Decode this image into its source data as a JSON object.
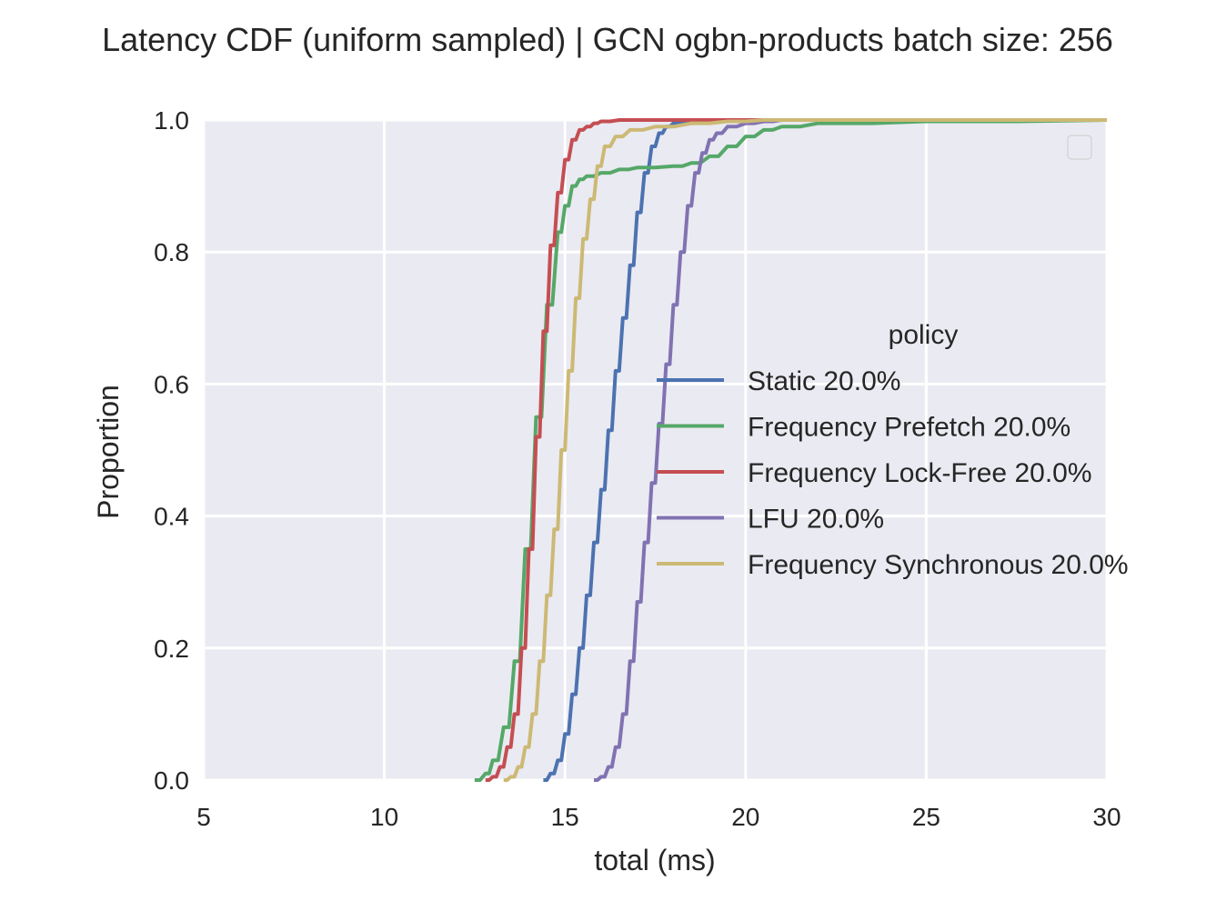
{
  "chart_data": {
    "type": "line",
    "title": "Latency CDF (uniform sampled) | GCN ogbn-products batch size: 256",
    "xlabel": "total (ms)",
    "ylabel": "Proportion",
    "xlim": [
      5,
      30
    ],
    "ylim": [
      0,
      1
    ],
    "xticks": [
      "5",
      "10",
      "15",
      "20",
      "25",
      "30"
    ],
    "yticks": [
      "0.0",
      "0.2",
      "0.4",
      "0.6",
      "0.8",
      "1.0"
    ],
    "grid": true,
    "background": "#eaeaf2",
    "legend": {
      "title": "policy",
      "placement": "center-right"
    },
    "series": [
      {
        "name": "Static 20.0%",
        "color": "#4c72b0",
        "x": [
          14.4,
          14.6,
          14.8,
          15.0,
          15.2,
          15.4,
          15.6,
          15.8,
          16.0,
          16.2,
          16.4,
          16.6,
          16.8,
          17.0,
          17.2,
          17.4,
          17.6,
          17.8,
          18.0,
          18.5,
          19.0,
          20.0,
          30.0
        ],
        "y": [
          0.0,
          0.01,
          0.03,
          0.07,
          0.13,
          0.2,
          0.28,
          0.36,
          0.44,
          0.53,
          0.62,
          0.7,
          0.78,
          0.86,
          0.92,
          0.96,
          0.98,
          0.99,
          0.995,
          0.998,
          1.0,
          1.0,
          1.0
        ]
      },
      {
        "name": "Frequency Prefetch 20.0%",
        "color": "#55a868",
        "x": [
          12.5,
          12.8,
          13.0,
          13.3,
          13.6,
          13.9,
          14.2,
          14.5,
          14.8,
          15.0,
          15.2,
          15.4,
          15.6,
          16.0,
          16.5,
          17.0,
          18.0,
          18.5,
          19.0,
          19.5,
          20.0,
          20.5,
          21.0,
          22.0,
          25.0,
          30.0
        ],
        "y": [
          0.0,
          0.01,
          0.03,
          0.08,
          0.18,
          0.35,
          0.55,
          0.72,
          0.83,
          0.87,
          0.9,
          0.91,
          0.915,
          0.92,
          0.925,
          0.928,
          0.93,
          0.935,
          0.945,
          0.96,
          0.975,
          0.985,
          0.99,
          0.995,
          0.998,
          1.0
        ]
      },
      {
        "name": "Frequency Lock-Free 20.0%",
        "color": "#c44e52",
        "x": [
          12.8,
          13.0,
          13.2,
          13.4,
          13.6,
          13.8,
          14.0,
          14.2,
          14.4,
          14.6,
          14.8,
          15.0,
          15.2,
          15.4,
          15.6,
          15.8,
          16.0,
          16.5,
          17.0,
          30.0
        ],
        "y": [
          0.0,
          0.005,
          0.02,
          0.05,
          0.1,
          0.2,
          0.35,
          0.52,
          0.68,
          0.81,
          0.89,
          0.94,
          0.97,
          0.985,
          0.99,
          0.995,
          0.998,
          1.0,
          1.0,
          1.0
        ]
      },
      {
        "name": "LFU 20.0%",
        "color": "#8172b2",
        "x": [
          15.8,
          16.0,
          16.2,
          16.4,
          16.6,
          16.8,
          17.0,
          17.2,
          17.4,
          17.6,
          17.8,
          18.0,
          18.2,
          18.4,
          18.6,
          18.8,
          19.0,
          19.2,
          19.5,
          20.0,
          20.5,
          21.0,
          30.0
        ],
        "y": [
          0.0,
          0.005,
          0.02,
          0.05,
          0.1,
          0.18,
          0.27,
          0.36,
          0.45,
          0.54,
          0.63,
          0.72,
          0.8,
          0.87,
          0.92,
          0.95,
          0.97,
          0.98,
          0.99,
          0.995,
          0.998,
          1.0,
          1.0
        ]
      },
      {
        "name": "Frequency Synchronous 20.0%",
        "color": "#ccb974",
        "x": [
          13.3,
          13.5,
          13.7,
          13.9,
          14.1,
          14.3,
          14.5,
          14.7,
          14.9,
          15.1,
          15.3,
          15.5,
          15.7,
          15.9,
          16.1,
          16.4,
          16.8,
          17.5,
          18.5,
          19.5,
          20.5,
          30.0
        ],
        "y": [
          0.0,
          0.005,
          0.02,
          0.05,
          0.1,
          0.18,
          0.28,
          0.38,
          0.5,
          0.62,
          0.73,
          0.82,
          0.88,
          0.93,
          0.96,
          0.975,
          0.985,
          0.99,
          0.995,
          0.998,
          1.0,
          1.0
        ]
      }
    ]
  }
}
